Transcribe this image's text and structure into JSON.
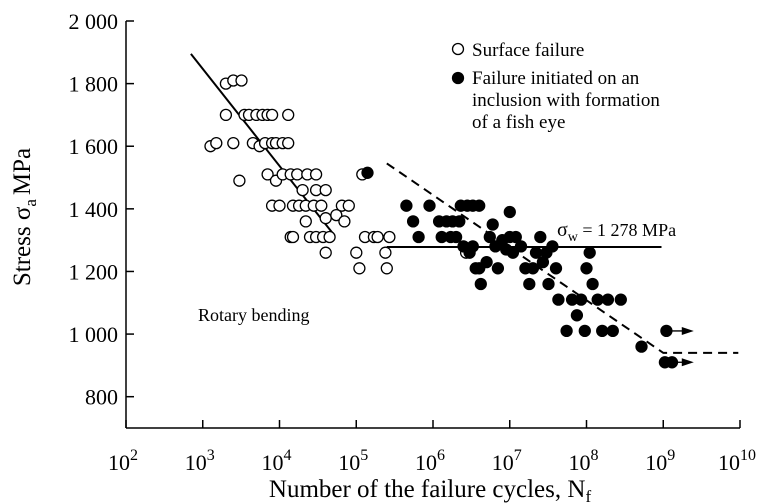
{
  "chart_data": {
    "type": "scatter",
    "x_scale": "log10",
    "xlim": [
      100,
      10000000000
    ],
    "ylim": [
      700,
      2000
    ],
    "grid": false,
    "legend_position": "top-right",
    "xlabel": {
      "main": "Number of the failure cycles, N",
      "sub": "f"
    },
    "ylabel": {
      "main": "Stress σ",
      "sub": "a",
      "unit": "MPa"
    },
    "x_ticks": [
      {
        "value": 100,
        "base": "10",
        "exp": "2"
      },
      {
        "value": 1000,
        "base": "10",
        "exp": "3"
      },
      {
        "value": 10000,
        "base": "10",
        "exp": "4"
      },
      {
        "value": 100000,
        "base": "10",
        "exp": "5"
      },
      {
        "value": 1000000,
        "base": "10",
        "exp": "6"
      },
      {
        "value": 10000000,
        "base": "10",
        "exp": "7"
      },
      {
        "value": 100000000,
        "base": "10",
        "exp": "8"
      },
      {
        "value": 1000000000,
        "base": "10",
        "exp": "9"
      },
      {
        "value": 10000000000,
        "base": "10",
        "exp": "10"
      }
    ],
    "y_ticks": [
      {
        "value": 800,
        "label": "800"
      },
      {
        "value": 1000,
        "label": "1 000"
      },
      {
        "value": 1200,
        "label": "1 200"
      },
      {
        "value": 1400,
        "label": "1 400"
      },
      {
        "value": 1600,
        "label": "1 600"
      },
      {
        "value": 1800,
        "label": "1 800"
      },
      {
        "value": 2000,
        "label": "2 000"
      }
    ],
    "legend": [
      {
        "symbol": "open-circle",
        "lines": [
          "Surface failure"
        ]
      },
      {
        "symbol": "filled-circle",
        "lines": [
          "Failure initiated on an",
          "inclusion with formation",
          "of a fish eye"
        ]
      }
    ],
    "annotations": {
      "rotary": "Rotary bending",
      "sigma_w": {
        "symbol": "σ",
        "sub": "w",
        "text": " = 1 278 MPa"
      }
    },
    "series": [
      {
        "name": "Surface failure",
        "marker": "open-circle",
        "points": [
          [
            1260,
            1600
          ],
          [
            2000,
            1800
          ],
          [
            2500,
            1810
          ],
          [
            3200,
            1810
          ],
          [
            2000,
            1700
          ],
          [
            1500,
            1610
          ],
          [
            2500,
            1610
          ],
          [
            3000,
            1490
          ],
          [
            3500,
            1700
          ],
          [
            4000,
            1700
          ],
          [
            5000,
            1700
          ],
          [
            6000,
            1700
          ],
          [
            7000,
            1700
          ],
          [
            8000,
            1700
          ],
          [
            13000,
            1700
          ],
          [
            4500,
            1610
          ],
          [
            5500,
            1600
          ],
          [
            6500,
            1610
          ],
          [
            8000,
            1610
          ],
          [
            9000,
            1610
          ],
          [
            11000,
            1610
          ],
          [
            13000,
            1610
          ],
          [
            7000,
            1510
          ],
          [
            9000,
            1490
          ],
          [
            11000,
            1510
          ],
          [
            14000,
            1510
          ],
          [
            17000,
            1510
          ],
          [
            23000,
            1510
          ],
          [
            30000,
            1510
          ],
          [
            8000,
            1410
          ],
          [
            10000,
            1410
          ],
          [
            15000,
            1410
          ],
          [
            18000,
            1410
          ],
          [
            22000,
            1410
          ],
          [
            28000,
            1410
          ],
          [
            35000,
            1410
          ],
          [
            20000,
            1460
          ],
          [
            30000,
            1460
          ],
          [
            40000,
            1460
          ],
          [
            14000,
            1310
          ],
          [
            15000,
            1310
          ],
          [
            25000,
            1310
          ],
          [
            30000,
            1310
          ],
          [
            37000,
            1310
          ],
          [
            45000,
            1310
          ],
          [
            22000,
            1360
          ],
          [
            40000,
            1370
          ],
          [
            55000,
            1380
          ],
          [
            65000,
            1410
          ],
          [
            80000,
            1410
          ],
          [
            70000,
            1360
          ],
          [
            40000,
            1260
          ],
          [
            100000,
            1260
          ],
          [
            120000,
            1510
          ],
          [
            110000,
            1210
          ],
          [
            130000,
            1310
          ],
          [
            170000,
            1310
          ],
          [
            190000,
            1310
          ],
          [
            240000,
            1260
          ],
          [
            250000,
            1210
          ],
          [
            270000,
            1310
          ],
          [
            2700000,
            1260
          ]
        ]
      },
      {
        "name": "Failure initiated on an inclusion with formation of a fish eye",
        "marker": "filled-circle",
        "points": [
          [
            140000,
            1515
          ],
          [
            450000,
            1410
          ],
          [
            550000,
            1360
          ],
          [
            650000,
            1310
          ],
          [
            900000,
            1410
          ],
          [
            1200000,
            1360
          ],
          [
            1300000,
            1310
          ],
          [
            1500000,
            1360
          ],
          [
            1700000,
            1310
          ],
          [
            2000000,
            1310
          ],
          [
            1800000,
            1360
          ],
          [
            2200000,
            1360
          ],
          [
            2300000,
            1410
          ],
          [
            2800000,
            1410
          ],
          [
            3300000,
            1410
          ],
          [
            4000000,
            1410
          ],
          [
            2500000,
            1280
          ],
          [
            3000000,
            1260
          ],
          [
            3300000,
            1280
          ],
          [
            3600000,
            1210
          ],
          [
            4000000,
            1210
          ],
          [
            4200000,
            1160
          ],
          [
            5000000,
            1230
          ],
          [
            5500000,
            1310
          ],
          [
            6000000,
            1350
          ],
          [
            6500000,
            1280
          ],
          [
            7000000,
            1210
          ],
          [
            8000000,
            1300
          ],
          [
            9000000,
            1270
          ],
          [
            10000000,
            1310
          ],
          [
            10000000,
            1390
          ],
          [
            11000000,
            1260
          ],
          [
            12000000,
            1310
          ],
          [
            14000000,
            1280
          ],
          [
            16000000,
            1210
          ],
          [
            18000000,
            1160
          ],
          [
            20000000,
            1210
          ],
          [
            22000000,
            1260
          ],
          [
            25000000,
            1310
          ],
          [
            27000000,
            1230
          ],
          [
            30000000,
            1260
          ],
          [
            32000000,
            1160
          ],
          [
            36000000,
            1280
          ],
          [
            40000000,
            1210
          ],
          [
            43000000,
            1110
          ],
          [
            55000000,
            1010
          ],
          [
            65000000,
            1110
          ],
          [
            75000000,
            1060
          ],
          [
            85000000,
            1110
          ],
          [
            95000000,
            1010
          ],
          [
            100000000,
            1210
          ],
          [
            110000000,
            1260
          ],
          [
            120000000,
            1160
          ],
          [
            140000000,
            1110
          ],
          [
            160000000,
            1010
          ],
          [
            190000000,
            1110
          ],
          [
            220000000,
            1010
          ],
          [
            280000000,
            1110
          ],
          [
            520000000,
            960
          ],
          [
            1100000000,
            1010
          ],
          [
            1050000000,
            910
          ],
          [
            1300000000,
            910
          ]
        ]
      }
    ],
    "lines": [
      {
        "name": "low-cycle-trend",
        "style": "solid",
        "points": [
          [
            700,
            1895
          ],
          [
            52000,
            1315
          ]
        ]
      },
      {
        "name": "high-cycle-trend",
        "style": "dashed",
        "points": [
          [
            250000,
            1545
          ],
          [
            1000000000,
            940
          ],
          [
            9500000000,
            940
          ]
        ]
      },
      {
        "name": "fatigue-limit",
        "style": "solid",
        "points": [
          [
            250000,
            1278
          ],
          [
            950000000,
            1278
          ]
        ]
      }
    ],
    "runouts": [
      {
        "from": [
          1200000000,
          1010
        ],
        "to": [
          2500000000,
          1010
        ]
      },
      {
        "from": [
          1400000000,
          910
        ],
        "to": [
          2500000000,
          910
        ]
      }
    ]
  }
}
